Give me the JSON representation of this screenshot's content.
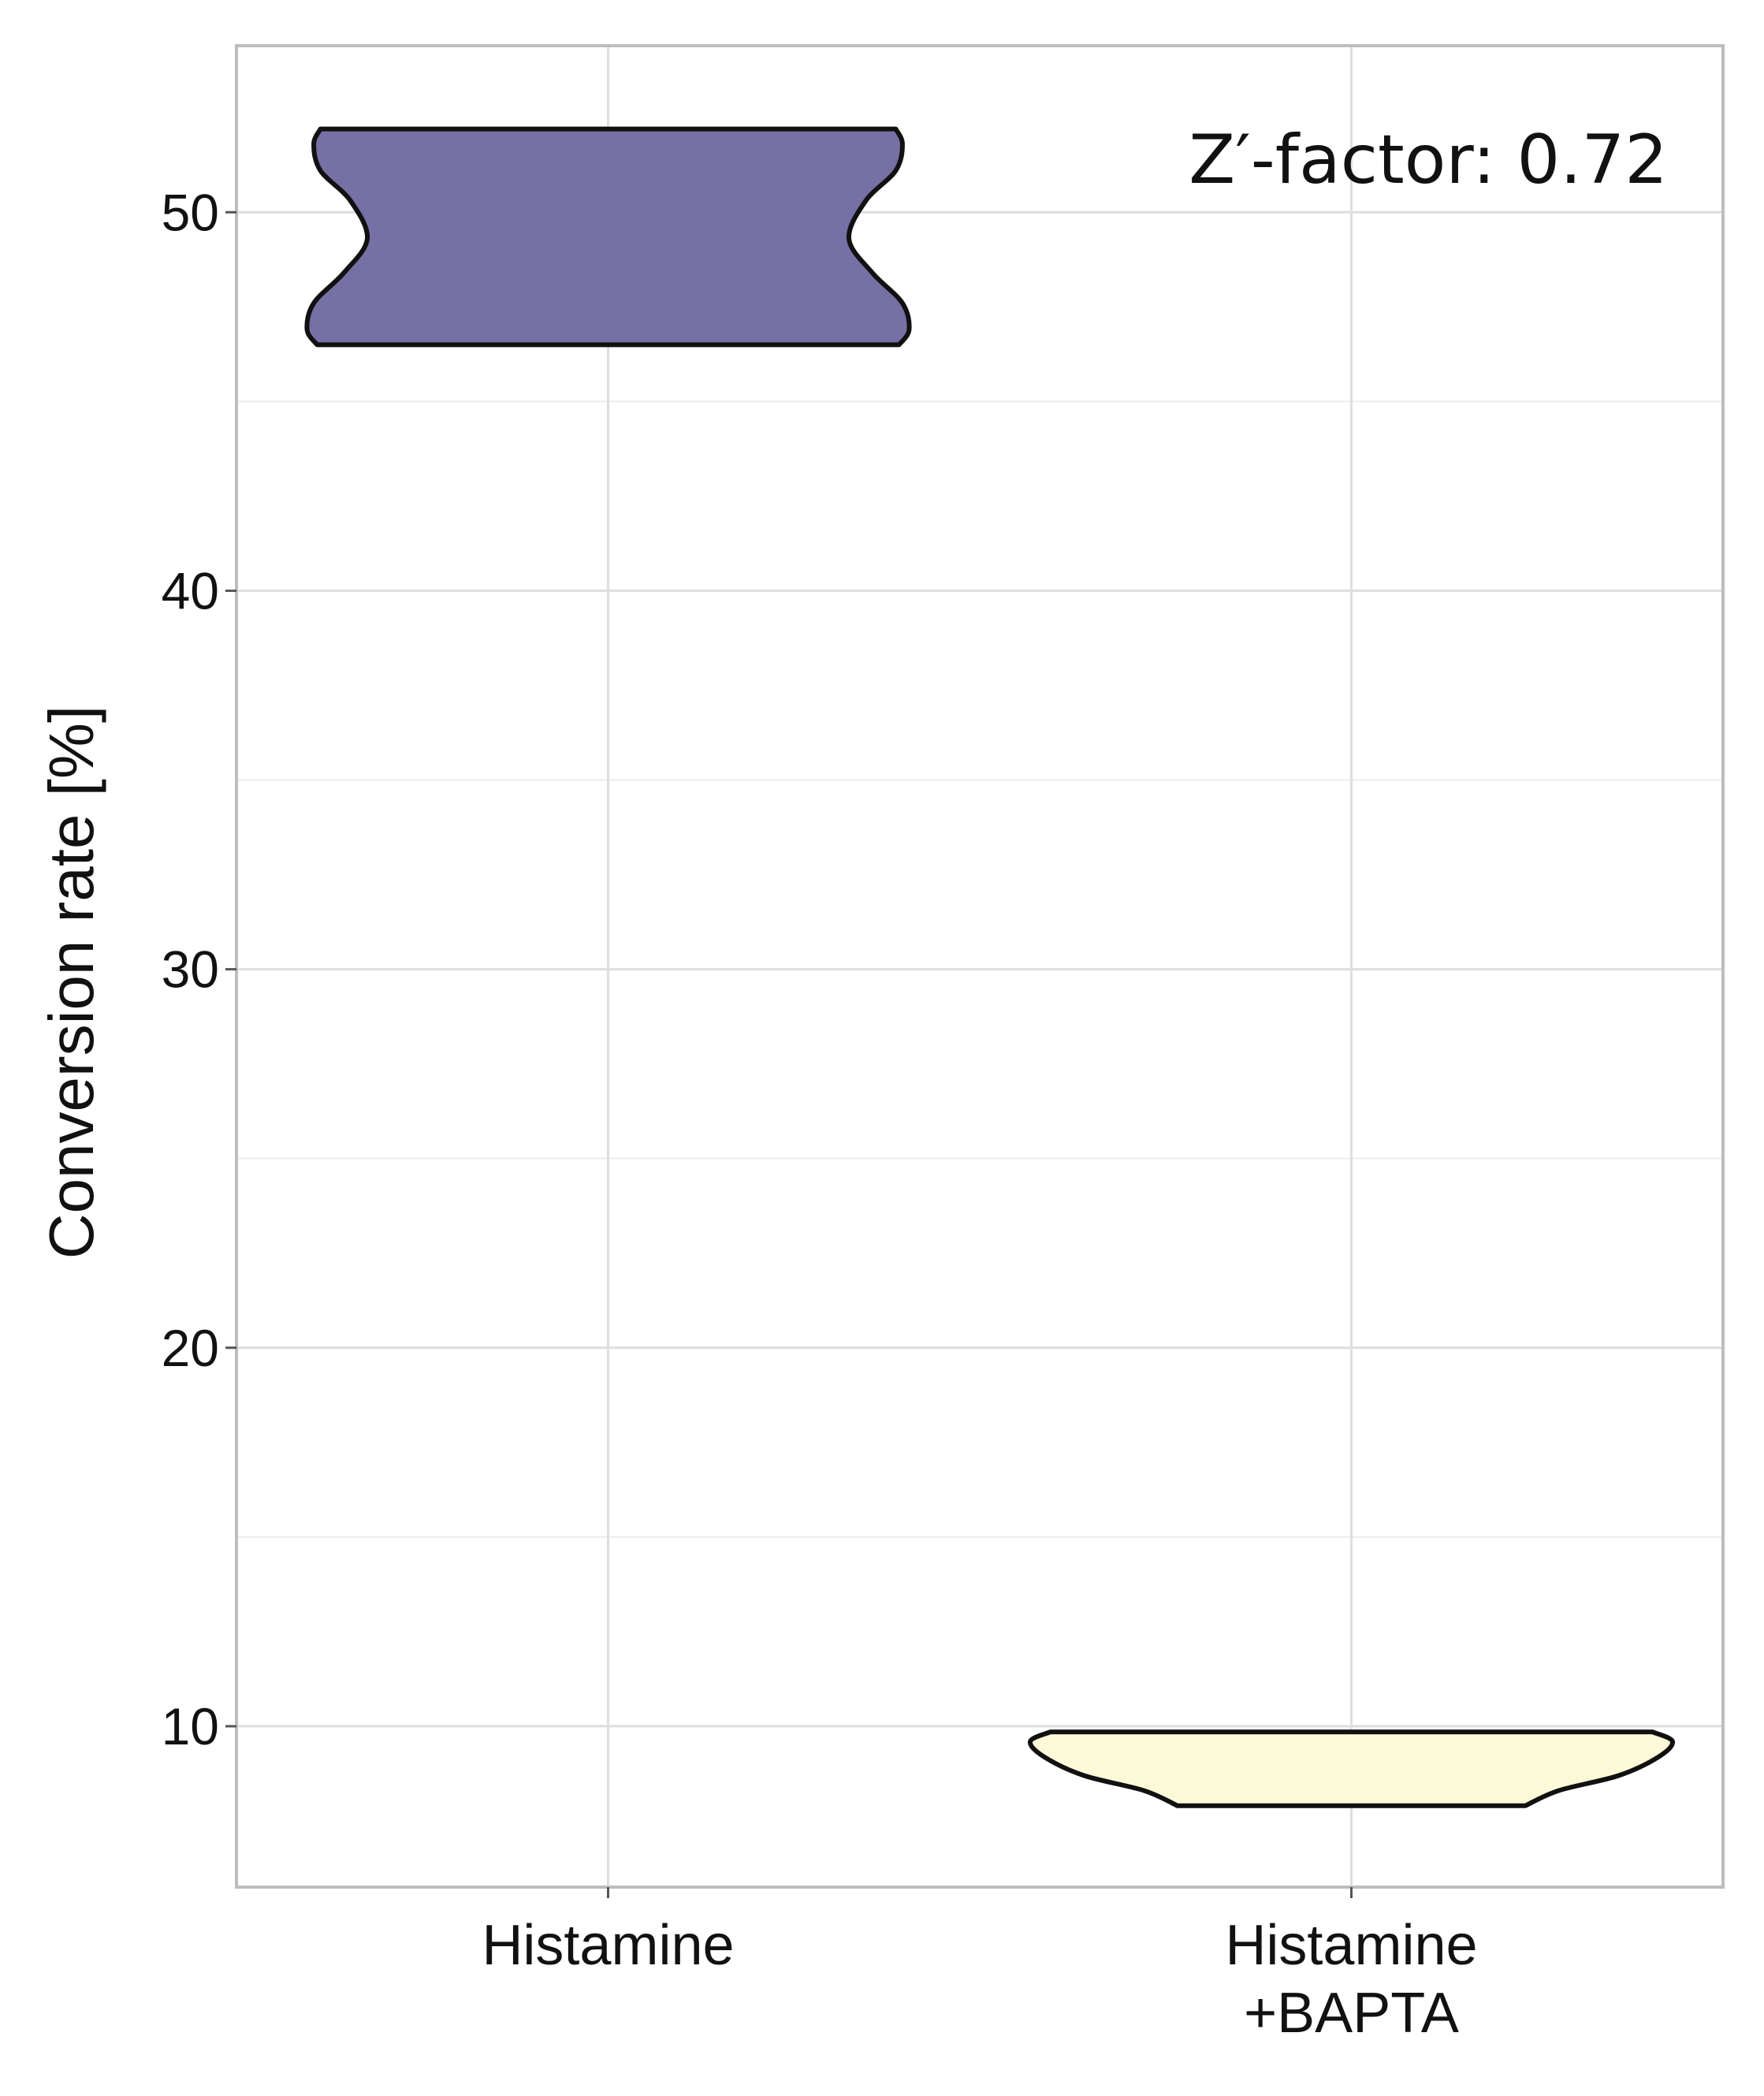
{
  "chart_data": {
    "type": "violin",
    "categories": [
      "Histamine",
      "Histamine\n+BAPTA"
    ],
    "category_label_lines": [
      [
        "Histamine"
      ],
      [
        "Histamine",
        "+BAPTA"
      ]
    ],
    "ylabel": "Conversion rate [%]",
    "ylim": [
      5.75,
      54.4
    ],
    "yticks": [
      10,
      20,
      30,
      40,
      50
    ],
    "grid": true,
    "annotation": "Z′-factor: 0.72",
    "series": [
      {
        "category": "Histamine",
        "color": "#7670a5",
        "range": [
          46.5,
          52.2
        ],
        "profile": [
          {
            "y": 46.5,
            "w": 0.87
          },
          {
            "y": 46.9,
            "w": 0.9
          },
          {
            "y": 47.6,
            "w": 0.88
          },
          {
            "y": 48.4,
            "w": 0.79
          },
          {
            "y": 49.3,
            "w": 0.72
          },
          {
            "y": 50.3,
            "w": 0.77
          },
          {
            "y": 51.1,
            "w": 0.86
          },
          {
            "y": 51.8,
            "w": 0.88
          },
          {
            "y": 52.2,
            "w": 0.86
          }
        ]
      },
      {
        "category": "Histamine\n+BAPTA",
        "color": "#fcf9d8",
        "range": [
          7.9,
          9.85
        ],
        "profile": [
          {
            "y": 7.9,
            "w": 0.52
          },
          {
            "y": 8.3,
            "w": 0.62
          },
          {
            "y": 8.7,
            "w": 0.8
          },
          {
            "y": 9.2,
            "w": 0.92
          },
          {
            "y": 9.6,
            "w": 0.96
          },
          {
            "y": 9.85,
            "w": 0.9
          }
        ]
      }
    ]
  }
}
